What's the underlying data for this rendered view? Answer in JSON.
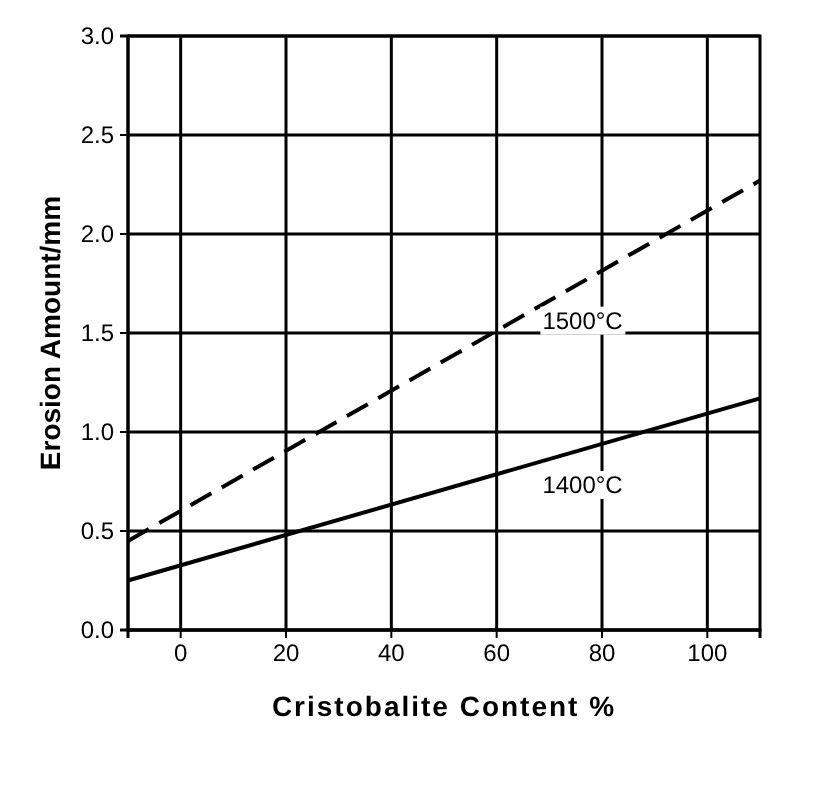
{
  "chart_data": {
    "type": "line",
    "xlabel": "Cristobalite Content  %",
    "ylabel": "Erosion Amount/mm",
    "xlim": [
      -10,
      110
    ],
    "xticks": [
      0,
      20,
      40,
      60,
      80,
      100
    ],
    "ylim": [
      0,
      3
    ],
    "yticks": [
      {
        "value": 0,
        "label": "0.0"
      },
      {
        "value": 0.5,
        "label": "0.5"
      },
      {
        "value": 1,
        "label": "1.0"
      },
      {
        "value": 1.5,
        "label": "1.5"
      },
      {
        "value": 2,
        "label": "2.0"
      },
      {
        "value": 2.5,
        "label": "2.5"
      },
      {
        "value": 3,
        "label": "3.0"
      }
    ],
    "grid": true,
    "marker": "none",
    "x": [
      -10,
      110
    ],
    "series": [
      {
        "name": "1500°C",
        "color": "#000000",
        "line_style": "dashed",
        "values": [
          0.45,
          2.27
        ]
      },
      {
        "name": "1400°C",
        "color": "#000000",
        "line_style": "solid",
        "values": [
          0.25,
          1.17
        ]
      }
    ]
  }
}
